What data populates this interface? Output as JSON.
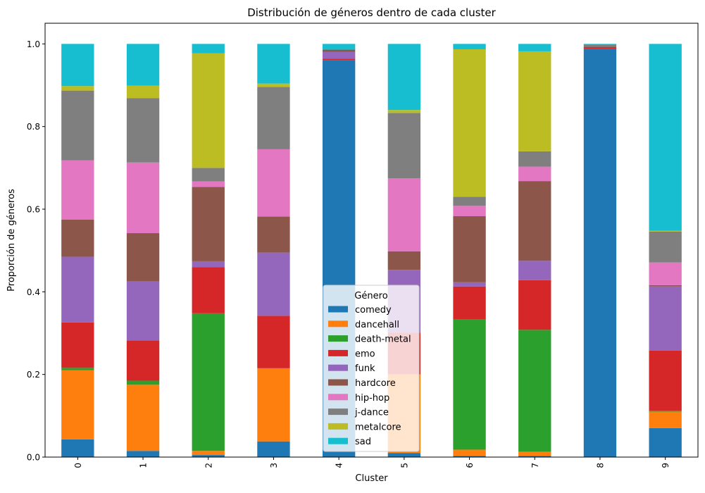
{
  "chart_data": {
    "type": "bar",
    "stacked": true,
    "title": "Distribución de géneros dentro de cada cluster",
    "xlabel": "Cluster",
    "ylabel": "Proporción de géneros",
    "ylim": [
      0,
      1.05
    ],
    "yticks": [
      "0.0",
      "0.2",
      "0.4",
      "0.6",
      "0.8",
      "1.0"
    ],
    "categories": [
      "0",
      "1",
      "2",
      "3",
      "4",
      "5",
      "6",
      "7",
      "8",
      "9"
    ],
    "grid": false,
    "legend": {
      "title": "Género",
      "placement": "lower center"
    },
    "series": [
      {
        "name": "comedy",
        "color": "#1f77b4",
        "values": [
          0.043,
          0.015,
          0.005,
          0.038,
          0.96,
          0.01,
          0.003,
          0.003,
          0.988,
          0.07
        ]
      },
      {
        "name": "dancehall",
        "color": "#ff7f0e",
        "values": [
          0.167,
          0.16,
          0.01,
          0.177,
          0.0,
          0.19,
          0.015,
          0.01,
          0.0,
          0.04
        ]
      },
      {
        "name": "death-metal",
        "color": "#2ca02c",
        "values": [
          0.006,
          0.01,
          0.333,
          0.0,
          0.0,
          0.0,
          0.315,
          0.295,
          0.0,
          0.002
        ]
      },
      {
        "name": "emo",
        "color": "#d62728",
        "values": [
          0.11,
          0.097,
          0.112,
          0.127,
          0.004,
          0.101,
          0.08,
          0.12,
          0.004,
          0.146
        ]
      },
      {
        "name": "funk",
        "color": "#9467bd",
        "values": [
          0.159,
          0.143,
          0.014,
          0.153,
          0.017,
          0.152,
          0.01,
          0.047,
          0.0,
          0.155
        ]
      },
      {
        "name": "hardcore",
        "color": "#8c564b",
        "values": [
          0.09,
          0.117,
          0.18,
          0.087,
          0.005,
          0.045,
          0.16,
          0.193,
          0.001,
          0.003
        ]
      },
      {
        "name": "hip-hop",
        "color": "#e377c2",
        "values": [
          0.143,
          0.171,
          0.013,
          0.163,
          0.0,
          0.177,
          0.025,
          0.035,
          0.0,
          0.055
        ]
      },
      {
        "name": "j-dance",
        "color": "#7f7f7f",
        "values": [
          0.169,
          0.156,
          0.033,
          0.151,
          0.0,
          0.158,
          0.022,
          0.037,
          0.005,
          0.075
        ]
      },
      {
        "name": "metalcore",
        "color": "#bcbd22",
        "values": [
          0.011,
          0.03,
          0.277,
          0.008,
          0.0,
          0.007,
          0.357,
          0.242,
          0.0,
          0.002
        ]
      },
      {
        "name": "sad",
        "color": "#17becf",
        "values": [
          0.102,
          0.101,
          0.023,
          0.096,
          0.014,
          0.16,
          0.013,
          0.018,
          0.002,
          0.452
        ]
      }
    ]
  }
}
